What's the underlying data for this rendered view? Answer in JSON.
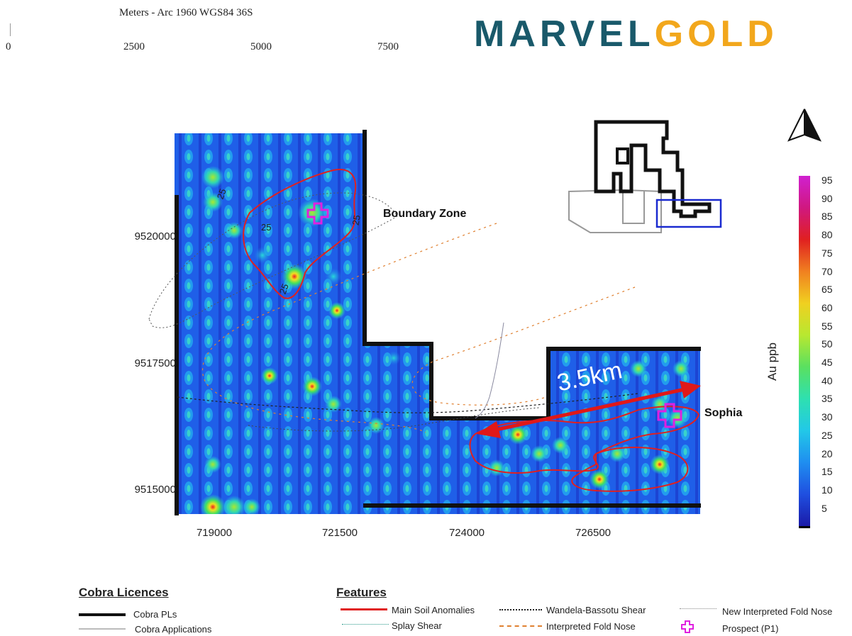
{
  "scale": {
    "title": "Meters - Arc 1960 WGS84 36S",
    "ticks": [
      "0",
      "2500",
      "5000",
      "7500"
    ]
  },
  "logo": {
    "part1": "MARVEL",
    "part2": "GOLD",
    "color1": "#19596a",
    "color2": "#f2a71c"
  },
  "axes": {
    "y_labels": [
      "9520000",
      "9517500",
      "9515000"
    ],
    "x_labels": [
      "719000",
      "721500",
      "724000",
      "726500"
    ]
  },
  "map_labels": {
    "boundary_zone": "Boundary Zone",
    "sophia": "Sophia",
    "distance": "3.5km",
    "contour": "25"
  },
  "colorbar": {
    "title": "Au ppb",
    "ticks": [
      "95",
      "90",
      "85",
      "80",
      "75",
      "70",
      "65",
      "60",
      "55",
      "50",
      "45",
      "40",
      "35",
      "30",
      "25",
      "20",
      "15",
      "10",
      "5"
    ],
    "colors": [
      "#1a1aa8",
      "#1f4fe0",
      "#1f8ef0",
      "#22c8e8",
      "#2ee0b0",
      "#5ae060",
      "#b8e830",
      "#f0d020",
      "#f08020",
      "#e02020",
      "#d01880",
      "#d020d0"
    ]
  },
  "legend": {
    "licences_title": "Cobra Licences",
    "licences": [
      "Cobra PLs",
      "Cobra Applications"
    ],
    "features_title": "Features",
    "features": [
      "Main Soil Anomalies",
      "Splay Shear",
      "Wandela-Bassotu Shear",
      "Interpreted Fold Nose",
      "New Interpreted Fold Nose",
      "Prospect (P1)"
    ]
  }
}
